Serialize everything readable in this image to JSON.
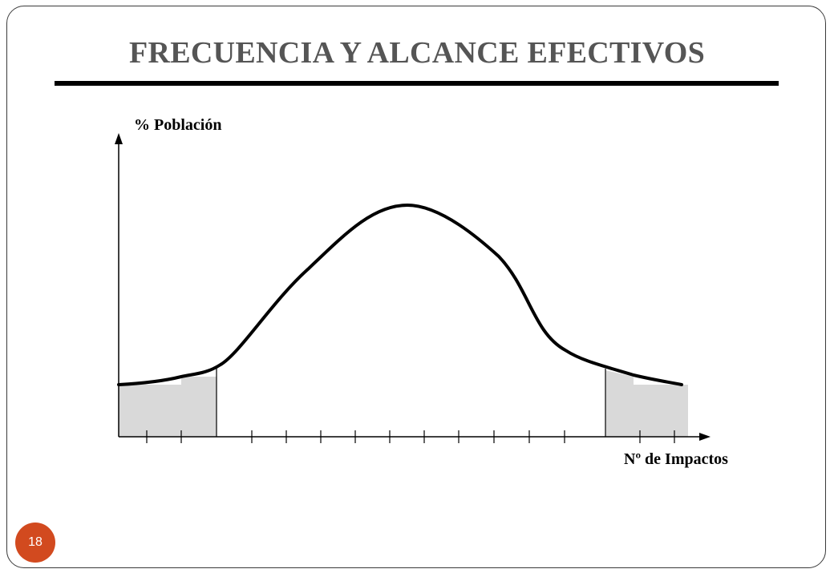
{
  "title": "FRECUENCIA Y ALCANCE EFECTIVOS",
  "axis": {
    "y_label": "% Población",
    "x_label": "Nº de Impactos"
  },
  "page_number": "18",
  "colors": {
    "title": "#555555",
    "badge": "#d24a1f",
    "shaded_region": "#d9d9d9",
    "curve": "#000000"
  }
}
